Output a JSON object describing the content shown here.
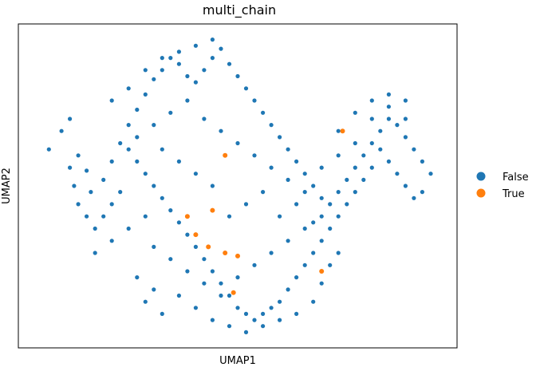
{
  "chart_data": {
    "type": "scatter",
    "title": "multi_chain",
    "xlabel": "UMAP1",
    "ylabel": "UMAP2",
    "xticks": false,
    "yticks": false,
    "grid": false,
    "legend_position": "right",
    "xlim": [
      0,
      100
    ],
    "ylim": [
      0,
      100
    ],
    "series": [
      {
        "name": "False",
        "color": "#1f77b4",
        "points": [
          [
            5,
            62
          ],
          [
            8,
            68
          ],
          [
            10,
            72
          ],
          [
            12,
            60
          ],
          [
            14,
            55
          ],
          [
            11,
            50
          ],
          [
            15,
            48
          ],
          [
            18,
            52
          ],
          [
            20,
            58
          ],
          [
            22,
            64
          ],
          [
            24,
            70
          ],
          [
            26,
            75
          ],
          [
            28,
            80
          ],
          [
            30,
            85
          ],
          [
            32,
            88
          ],
          [
            34,
            92
          ],
          [
            36,
            90
          ],
          [
            38,
            86
          ],
          [
            40,
            84
          ],
          [
            42,
            88
          ],
          [
            44,
            92
          ],
          [
            46,
            95
          ],
          [
            48,
            90
          ],
          [
            50,
            86
          ],
          [
            52,
            82
          ],
          [
            54,
            78
          ],
          [
            56,
            74
          ],
          [
            58,
            70
          ],
          [
            60,
            66
          ],
          [
            62,
            62
          ],
          [
            64,
            58
          ],
          [
            66,
            54
          ],
          [
            68,
            50
          ],
          [
            70,
            46
          ],
          [
            72,
            44
          ],
          [
            74,
            48
          ],
          [
            76,
            52
          ],
          [
            78,
            56
          ],
          [
            80,
            60
          ],
          [
            82,
            64
          ],
          [
            84,
            68
          ],
          [
            86,
            72
          ],
          [
            88,
            70
          ],
          [
            90,
            66
          ],
          [
            92,
            62
          ],
          [
            94,
            58
          ],
          [
            96,
            54
          ],
          [
            94,
            48
          ],
          [
            92,
            46
          ],
          [
            90,
            50
          ],
          [
            88,
            54
          ],
          [
            86,
            58
          ],
          [
            84,
            62
          ],
          [
            82,
            56
          ],
          [
            80,
            52
          ],
          [
            78,
            48
          ],
          [
            76,
            44
          ],
          [
            74,
            40
          ],
          [
            72,
            36
          ],
          [
            70,
            32
          ],
          [
            68,
            28
          ],
          [
            66,
            24
          ],
          [
            64,
            20
          ],
          [
            62,
            16
          ],
          [
            60,
            12
          ],
          [
            58,
            10
          ],
          [
            56,
            8
          ],
          [
            54,
            6
          ],
          [
            52,
            8
          ],
          [
            50,
            10
          ],
          [
            48,
            14
          ],
          [
            46,
            18
          ],
          [
            44,
            22
          ],
          [
            42,
            26
          ],
          [
            40,
            30
          ],
          [
            38,
            34
          ],
          [
            36,
            38
          ],
          [
            34,
            42
          ],
          [
            32,
            46
          ],
          [
            30,
            50
          ],
          [
            28,
            54
          ],
          [
            26,
            58
          ],
          [
            24,
            62
          ],
          [
            22,
            48
          ],
          [
            20,
            44
          ],
          [
            18,
            40
          ],
          [
            16,
            36
          ],
          [
            14,
            40
          ],
          [
            12,
            44
          ],
          [
            10,
            56
          ],
          [
            30,
            30
          ],
          [
            34,
            26
          ],
          [
            38,
            22
          ],
          [
            42,
            18
          ],
          [
            46,
            14
          ],
          [
            50,
            20
          ],
          [
            54,
            24
          ],
          [
            58,
            28
          ],
          [
            62,
            32
          ],
          [
            66,
            36
          ],
          [
            70,
            40
          ],
          [
            74,
            60
          ],
          [
            78,
            64
          ],
          [
            82,
            72
          ],
          [
            86,
            80
          ],
          [
            90,
            78
          ],
          [
            20,
            78
          ],
          [
            24,
            82
          ],
          [
            28,
            88
          ],
          [
            32,
            92
          ],
          [
            36,
            94
          ],
          [
            40,
            96
          ],
          [
            44,
            98
          ],
          [
            26,
            66
          ],
          [
            30,
            70
          ],
          [
            34,
            74
          ],
          [
            38,
            78
          ],
          [
            42,
            72
          ],
          [
            46,
            68
          ],
          [
            50,
            64
          ],
          [
            54,
            60
          ],
          [
            58,
            56
          ],
          [
            62,
            52
          ],
          [
            66,
            48
          ],
          [
            70,
            56
          ],
          [
            74,
            68
          ],
          [
            78,
            74
          ],
          [
            82,
            78
          ],
          [
            86,
            76
          ],
          [
            90,
            72
          ],
          [
            48,
            40
          ],
          [
            52,
            44
          ],
          [
            56,
            48
          ],
          [
            60,
            40
          ],
          [
            64,
            44
          ],
          [
            68,
            38
          ],
          [
            44,
            50
          ],
          [
            40,
            54
          ],
          [
            36,
            58
          ],
          [
            32,
            62
          ],
          [
            28,
            40
          ],
          [
            24,
            36
          ],
          [
            20,
            32
          ],
          [
            16,
            28
          ],
          [
            36,
            14
          ],
          [
            40,
            10
          ],
          [
            44,
            6
          ],
          [
            48,
            4
          ],
          [
            52,
            2
          ],
          [
            56,
            4
          ],
          [
            60,
            6
          ],
          [
            64,
            8
          ],
          [
            68,
            12
          ],
          [
            70,
            18
          ],
          [
            72,
            24
          ],
          [
            74,
            28
          ],
          [
            30,
            16
          ],
          [
            28,
            12
          ],
          [
            32,
            8
          ],
          [
            26,
            20
          ]
        ]
      },
      {
        "name": "True",
        "color": "#ff7f0e",
        "points": [
          [
            47,
            60
          ],
          [
            75,
            68
          ],
          [
            44,
            42
          ],
          [
            38,
            40
          ],
          [
            40,
            34
          ],
          [
            43,
            30
          ],
          [
            47,
            28
          ],
          [
            50,
            27
          ],
          [
            70,
            22
          ],
          [
            49,
            15
          ]
        ]
      }
    ]
  }
}
